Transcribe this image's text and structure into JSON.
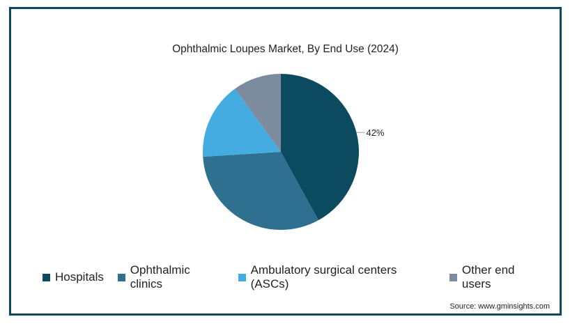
{
  "chart_data": {
    "type": "pie",
    "title": "Ophthalmic Loupes Market, By End Use (2024)",
    "series": [
      {
        "name": "Hospitals",
        "value": 42,
        "color": "#0c4a5f"
      },
      {
        "name": "Ophthalmic clinics",
        "value": 32,
        "color": "#2f6f8f"
      },
      {
        "name": "Ambulatory surgical centers (ASCs)",
        "value": 16,
        "color": "#44ace0"
      },
      {
        "name": "Other end users",
        "value": 10,
        "color": "#7c8b9d"
      }
    ],
    "data_labels": [
      {
        "series": "Hospitals",
        "text": "42%"
      }
    ],
    "legend_position": "bottom",
    "source": "Source: www.gminsights.com"
  }
}
